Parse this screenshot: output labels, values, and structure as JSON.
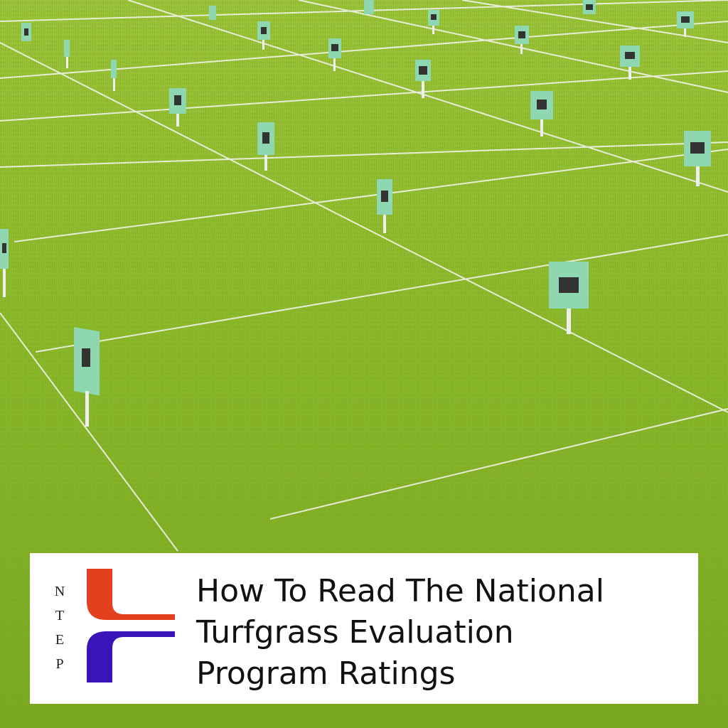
{
  "logo": {
    "letters": [
      "N",
      "T",
      "E",
      "P"
    ]
  },
  "title": {
    "lines": [
      "How To Read The National",
      "Turfgrass Evaluation",
      "Program Ratings"
    ]
  }
}
